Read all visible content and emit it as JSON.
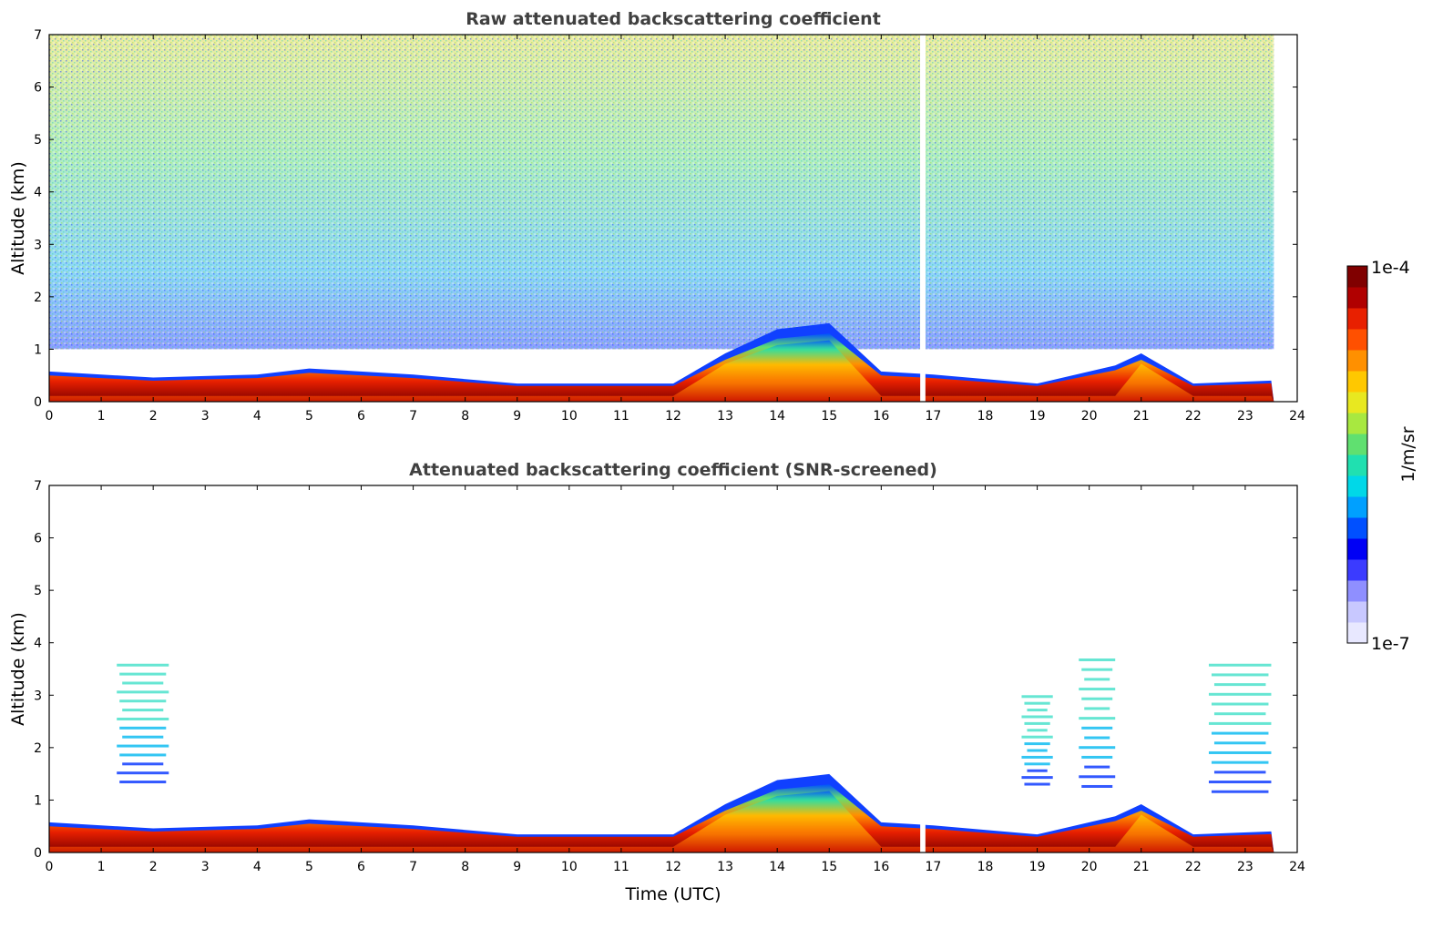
{
  "chart_data": [
    {
      "type": "heatmap",
      "id": "raw",
      "title": "Raw attenuated backscattering coefficient",
      "xlabel": "",
      "ylabel": "Altitude (km)",
      "xlim": [
        0,
        24
      ],
      "ylim": [
        0,
        7
      ],
      "xticks": [
        "0",
        "1",
        "2",
        "3",
        "4",
        "5",
        "6",
        "7",
        "8",
        "9",
        "10",
        "11",
        "12",
        "13",
        "14",
        "15",
        "16",
        "17",
        "18",
        "19",
        "20",
        "21",
        "22",
        "23",
        "24"
      ],
      "yticks": [
        "0",
        "1",
        "2",
        "3",
        "4",
        "5",
        "6",
        "7"
      ],
      "data_end_hour": 23.55,
      "features": {
        "boundary_layer_top_km": [
          [
            0,
            0.5
          ],
          [
            2,
            0.4
          ],
          [
            4,
            0.45
          ],
          [
            5,
            0.55
          ],
          [
            7,
            0.45
          ],
          [
            9,
            0.3
          ],
          [
            12,
            0.3
          ],
          [
            13,
            0.8
          ],
          [
            14,
            1.2
          ],
          [
            15,
            1.3
          ],
          [
            16,
            0.5
          ],
          [
            17,
            0.45
          ],
          [
            19,
            0.3
          ],
          [
            20.5,
            0.6
          ],
          [
            21,
            0.8
          ],
          [
            22,
            0.3
          ],
          [
            23.5,
            0.35
          ]
        ],
        "noise_floor_altitude_km": 1.0,
        "gap_hours": [
          16.75,
          16.85
        ]
      }
    },
    {
      "type": "heatmap",
      "id": "screened",
      "title": "Attenuated backscattering coefficient (SNR-screened)",
      "xlabel": "Time (UTC)",
      "ylabel": "Altitude (km)",
      "xlim": [
        0,
        24
      ],
      "ylim": [
        0,
        7
      ],
      "xticks": [
        "0",
        "1",
        "2",
        "3",
        "4",
        "5",
        "6",
        "7",
        "8",
        "9",
        "10",
        "11",
        "12",
        "13",
        "14",
        "15",
        "16",
        "17",
        "18",
        "19",
        "20",
        "21",
        "22",
        "23",
        "24"
      ],
      "yticks": [
        "0",
        "1",
        "2",
        "3",
        "4",
        "5",
        "6",
        "7"
      ],
      "aerosol_layers": [
        {
          "hours": [
            1.3,
            2.3
          ],
          "altitude_km": [
            1.2,
            3.6
          ]
        },
        {
          "hours": [
            18.7,
            19.3
          ],
          "altitude_km": [
            1.2,
            3.0
          ]
        },
        {
          "hours": [
            19.8,
            20.5
          ],
          "altitude_km": [
            1.1,
            3.7
          ]
        },
        {
          "hours": [
            22.3,
            23.5
          ],
          "altitude_km": [
            1.0,
            3.6
          ]
        }
      ]
    }
  ],
  "colorbar": {
    "max_label": "1e-4",
    "min_label": "1e-7",
    "unit_label": "1/m/sr",
    "colors": [
      "#e8e8ff",
      "#c8c8ff",
      "#8f8fff",
      "#3b3bff",
      "#0000f5",
      "#0050ff",
      "#00a0ff",
      "#00d8e8",
      "#20e0b0",
      "#60e070",
      "#a8e840",
      "#e8e820",
      "#ffc800",
      "#ff9000",
      "#ff5000",
      "#e82000",
      "#b00000",
      "#800000"
    ]
  }
}
